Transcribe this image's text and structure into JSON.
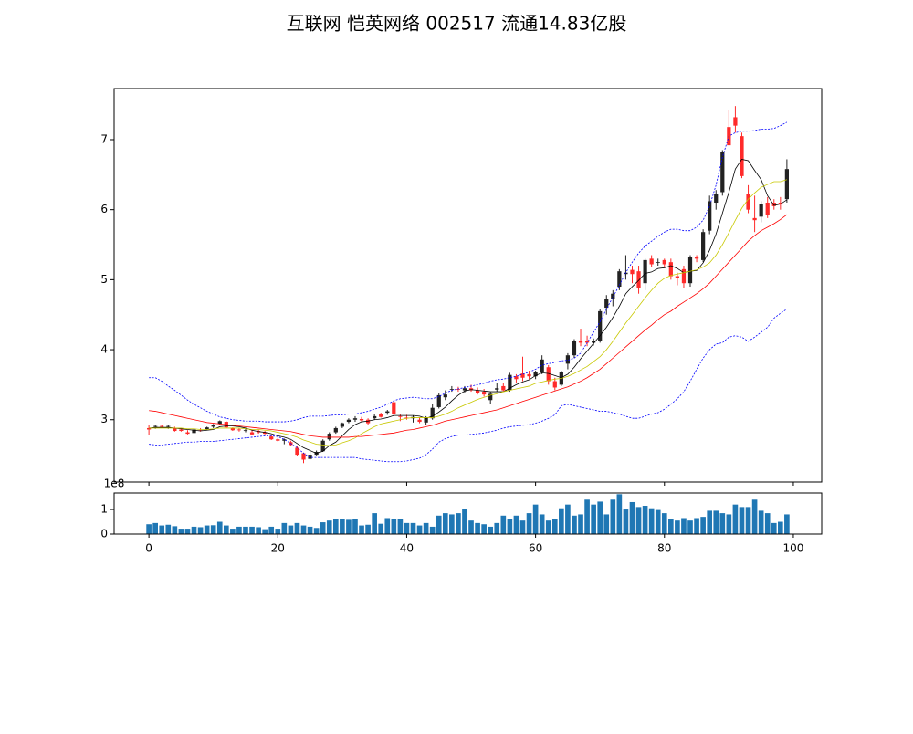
{
  "chart_data": [
    {
      "type": "candlestick",
      "title": "互联网 恺英网络 002517 流通14.83亿股",
      "x": [
        0,
        1,
        2,
        3,
        4,
        5,
        6,
        7,
        8,
        9,
        10,
        11,
        12,
        13,
        14,
        15,
        16,
        17,
        18,
        19,
        20,
        21,
        22,
        23,
        24,
        25,
        26,
        27,
        28,
        29,
        30,
        31,
        32,
        33,
        34,
        35,
        36,
        37,
        38,
        39,
        40,
        41,
        42,
        43,
        44,
        45,
        46,
        47,
        48,
        49,
        50,
        51,
        52,
        53,
        54,
        55,
        56,
        57,
        58,
        59,
        60,
        61,
        62,
        63,
        64,
        65,
        66,
        67,
        68,
        69,
        70,
        71,
        72,
        73,
        74,
        75,
        76,
        77,
        78,
        79,
        80,
        81,
        82,
        83,
        84,
        85,
        86,
        87,
        88,
        89,
        90,
        91,
        92,
        93,
        94,
        95,
        96,
        97,
        98,
        99
      ],
      "open": [
        2.88,
        2.9,
        2.91,
        2.9,
        2.88,
        2.86,
        2.82,
        2.81,
        2.85,
        2.86,
        2.9,
        2.94,
        2.97,
        2.88,
        2.86,
        2.84,
        2.82,
        2.84,
        2.82,
        2.76,
        2.72,
        2.7,
        2.68,
        2.6,
        2.52,
        2.44,
        2.5,
        2.55,
        2.72,
        2.82,
        2.9,
        2.97,
        3.0,
        3.01,
        3.0,
        3.02,
        3.08,
        3.1,
        3.25,
        3.05,
        3.03,
        3.02,
        3.0,
        2.96,
        3.02,
        3.18,
        3.32,
        3.43,
        3.44,
        3.42,
        3.45,
        3.42,
        3.4,
        3.28,
        3.43,
        3.48,
        3.42,
        3.62,
        3.66,
        3.65,
        3.62,
        3.68,
        3.75,
        3.55,
        3.5,
        3.8,
        3.92,
        4.12,
        4.12,
        4.1,
        4.13,
        4.6,
        4.72,
        4.9,
        5.08,
        5.14,
        5.12,
        4.95,
        5.3,
        5.25,
        5.28,
        5.25,
        5.05,
        5.15,
        4.95,
        5.32,
        5.28,
        5.7,
        6.1,
        6.25,
        7.18,
        7.32,
        7.05,
        6.22,
        5.88,
        5.9,
        6.1,
        6.1,
        6.1,
        6.15
      ],
      "high": [
        2.92,
        2.93,
        2.93,
        2.92,
        2.9,
        2.88,
        2.85,
        2.88,
        2.88,
        2.9,
        2.94,
        2.99,
        2.98,
        2.89,
        2.88,
        2.87,
        2.86,
        2.86,
        2.84,
        2.78,
        2.74,
        2.73,
        2.7,
        2.62,
        2.53,
        2.54,
        2.56,
        2.72,
        2.82,
        2.9,
        2.96,
        3.02,
        3.05,
        3.04,
        3.02,
        3.08,
        3.1,
        3.14,
        3.27,
        3.08,
        3.07,
        3.06,
        3.03,
        3.05,
        3.22,
        3.38,
        3.42,
        3.48,
        3.47,
        3.48,
        3.5,
        3.46,
        3.44,
        3.4,
        3.52,
        3.53,
        3.67,
        3.65,
        3.9,
        3.7,
        3.7,
        3.92,
        3.78,
        3.6,
        3.7,
        3.95,
        4.15,
        4.3,
        4.2,
        4.16,
        4.58,
        4.78,
        4.85,
        5.15,
        5.35,
        5.2,
        5.2,
        5.3,
        5.35,
        5.3,
        5.3,
        5.3,
        5.1,
        5.2,
        5.35,
        5.35,
        5.72,
        6.2,
        6.28,
        6.85,
        7.42,
        7.48,
        7.1,
        6.35,
        6.2,
        6.12,
        6.18,
        6.15,
        6.18,
        6.72
      ],
      "low": [
        2.78,
        2.87,
        2.88,
        2.87,
        2.83,
        2.83,
        2.79,
        2.8,
        2.83,
        2.85,
        2.88,
        2.92,
        2.88,
        2.84,
        2.83,
        2.82,
        2.78,
        2.8,
        2.79,
        2.71,
        2.69,
        2.65,
        2.63,
        2.48,
        2.38,
        2.43,
        2.49,
        2.54,
        2.7,
        2.8,
        2.88,
        2.95,
        2.97,
        2.97,
        2.93,
        3.0,
        3.03,
        3.07,
        3.05,
        2.98,
        3.0,
        2.96,
        2.95,
        2.93,
        3.0,
        3.16,
        3.28,
        3.4,
        3.4,
        3.39,
        3.4,
        3.36,
        3.33,
        3.22,
        3.4,
        3.4,
        3.4,
        3.52,
        3.55,
        3.58,
        3.58,
        3.65,
        3.5,
        3.42,
        3.48,
        3.72,
        3.88,
        4.05,
        4.05,
        4.06,
        4.1,
        4.5,
        4.62,
        4.85,
        5.0,
        4.95,
        4.8,
        4.85,
        5.18,
        5.2,
        5.18,
        5.0,
        4.92,
        4.88,
        4.9,
        5.25,
        5.25,
        5.65,
        6.0,
        6.2,
        6.95,
        7.1,
        6.45,
        5.95,
        5.68,
        5.82,
        5.88,
        6.0,
        6.0,
        6.1
      ],
      "close": [
        2.86,
        2.91,
        2.9,
        2.91,
        2.84,
        2.84,
        2.8,
        2.86,
        2.84,
        2.89,
        2.93,
        2.98,
        2.89,
        2.85,
        2.85,
        2.85,
        2.79,
        2.82,
        2.8,
        2.72,
        2.7,
        2.72,
        2.64,
        2.5,
        2.43,
        2.5,
        2.54,
        2.7,
        2.8,
        2.88,
        2.95,
        3.0,
        3.02,
        2.99,
        2.95,
        3.05,
        3.04,
        3.12,
        3.08,
        3.04,
        3.02,
        3.04,
        2.97,
        3.03,
        3.17,
        3.35,
        3.36,
        3.44,
        3.43,
        3.45,
        3.42,
        3.38,
        3.36,
        3.37,
        3.45,
        3.42,
        3.64,
        3.58,
        3.6,
        3.62,
        3.68,
        3.86,
        3.55,
        3.46,
        3.68,
        3.92,
        4.12,
        4.1,
        4.1,
        4.13,
        4.55,
        4.72,
        4.8,
        5.12,
        5.1,
        5.08,
        4.88,
        5.28,
        5.22,
        5.25,
        5.22,
        5.05,
        5.02,
        4.95,
        5.33,
        5.3,
        5.68,
        6.12,
        6.22,
        6.82,
        6.92,
        7.2,
        6.48,
        6.0,
        5.85,
        6.08,
        5.92,
        6.05,
        6.08,
        6.58
      ],
      "up_color": "#222222",
      "down_color": "#ff2a2a",
      "series": [
        {
          "color": "#000000",
          "values": [
            2.88,
            2.89,
            2.89,
            2.89,
            2.88,
            2.87,
            2.86,
            2.85,
            2.84,
            2.85,
            2.86,
            2.9,
            2.91,
            2.91,
            2.9,
            2.88,
            2.85,
            2.83,
            2.82,
            2.8,
            2.77,
            2.75,
            2.72,
            2.66,
            2.6,
            2.56,
            2.52,
            2.55,
            2.63,
            2.68,
            2.77,
            2.86,
            2.93,
            2.97,
            2.98,
            3.0,
            3.01,
            3.03,
            3.06,
            3.06,
            3.06,
            3.06,
            3.05,
            3.02,
            3.05,
            3.11,
            3.18,
            3.27,
            3.35,
            3.41,
            3.43,
            3.42,
            3.41,
            3.4,
            3.4,
            3.4,
            3.45,
            3.5,
            3.54,
            3.57,
            3.63,
            3.67,
            3.66,
            3.63,
            3.6,
            3.65,
            3.75,
            3.87,
            3.98,
            4.09,
            4.2,
            4.32,
            4.46,
            4.62,
            4.8,
            4.9,
            4.99,
            5.09,
            5.11,
            5.16,
            5.17,
            5.2,
            5.16,
            5.1,
            5.12,
            5.13,
            5.24,
            5.42,
            5.65,
            5.95,
            6.25,
            6.58,
            6.72,
            6.7,
            6.56,
            6.43,
            6.2,
            6.06,
            6.08,
            6.14
          ]
        },
        {
          "color": "#c8c800",
          "values": [
            2.88,
            2.88,
            2.88,
            2.88,
            2.88,
            2.88,
            2.87,
            2.87,
            2.86,
            2.86,
            2.87,
            2.88,
            2.88,
            2.88,
            2.88,
            2.87,
            2.86,
            2.86,
            2.85,
            2.84,
            2.82,
            2.8,
            2.78,
            2.75,
            2.71,
            2.68,
            2.65,
            2.64,
            2.63,
            2.64,
            2.67,
            2.7,
            2.74,
            2.8,
            2.85,
            2.9,
            2.94,
            2.96,
            2.98,
            3.0,
            3.02,
            3.03,
            3.03,
            3.03,
            3.03,
            3.05,
            3.08,
            3.12,
            3.17,
            3.21,
            3.25,
            3.29,
            3.32,
            3.35,
            3.37,
            3.4,
            3.42,
            3.44,
            3.46,
            3.48,
            3.52,
            3.54,
            3.56,
            3.58,
            3.59,
            3.62,
            3.66,
            3.71,
            3.76,
            3.83,
            3.9,
            4.0,
            4.12,
            4.25,
            4.38,
            4.5,
            4.62,
            4.74,
            4.85,
            4.95,
            5.02,
            5.06,
            5.08,
            5.1,
            5.12,
            5.14,
            5.18,
            5.24,
            5.35,
            5.5,
            5.67,
            5.85,
            6.02,
            6.15,
            6.24,
            6.32,
            6.36,
            6.4,
            6.4,
            6.43
          ]
        },
        {
          "color": "#ff0000",
          "values": [
            3.13,
            3.12,
            3.1,
            3.08,
            3.06,
            3.04,
            3.02,
            3.0,
            2.98,
            2.96,
            2.95,
            2.94,
            2.93,
            2.92,
            2.91,
            2.9,
            2.89,
            2.88,
            2.87,
            2.86,
            2.85,
            2.84,
            2.83,
            2.81,
            2.79,
            2.77,
            2.76,
            2.75,
            2.75,
            2.75,
            2.75,
            2.75,
            2.76,
            2.76,
            2.77,
            2.78,
            2.79,
            2.8,
            2.81,
            2.83,
            2.85,
            2.86,
            2.88,
            2.9,
            2.92,
            2.95,
            2.98,
            3.0,
            3.02,
            3.04,
            3.06,
            3.08,
            3.1,
            3.12,
            3.14,
            3.17,
            3.2,
            3.23,
            3.26,
            3.29,
            3.32,
            3.35,
            3.38,
            3.41,
            3.44,
            3.47,
            3.51,
            3.55,
            3.6,
            3.66,
            3.72,
            3.8,
            3.88,
            3.96,
            4.04,
            4.12,
            4.2,
            4.28,
            4.35,
            4.43,
            4.5,
            4.55,
            4.62,
            4.68,
            4.74,
            4.8,
            4.87,
            4.95,
            5.05,
            5.15,
            5.25,
            5.35,
            5.45,
            5.55,
            5.63,
            5.7,
            5.75,
            5.8,
            5.86,
            5.93
          ]
        },
        {
          "color": "#0000ff",
          "dashed": true,
          "values": [
            3.6,
            3.6,
            3.55,
            3.48,
            3.42,
            3.35,
            3.28,
            3.22,
            3.17,
            3.12,
            3.08,
            3.04,
            3.02,
            3.0,
            2.99,
            2.98,
            2.98,
            2.98,
            2.97,
            2.97,
            2.97,
            2.97,
            2.98,
            3.0,
            3.03,
            3.05,
            3.05,
            3.05,
            3.06,
            3.07,
            3.07,
            3.08,
            3.08,
            3.1,
            3.12,
            3.15,
            3.18,
            3.22,
            3.27,
            3.3,
            3.31,
            3.32,
            3.31,
            3.3,
            3.3,
            3.33,
            3.38,
            3.42,
            3.44,
            3.46,
            3.48,
            3.5,
            3.52,
            3.55,
            3.57,
            3.58,
            3.6,
            3.62,
            3.65,
            3.68,
            3.72,
            3.78,
            3.8,
            3.82,
            3.84,
            3.85,
            3.88,
            3.95,
            4.1,
            4.25,
            4.4,
            4.58,
            4.75,
            4.92,
            5.1,
            5.25,
            5.38,
            5.48,
            5.55,
            5.62,
            5.68,
            5.72,
            5.72,
            5.7,
            5.7,
            5.75,
            5.85,
            6.05,
            6.35,
            6.75,
            7.05,
            7.1,
            7.12,
            7.12,
            7.13,
            7.15,
            7.15,
            7.16,
            7.2,
            7.25
          ]
        },
        {
          "color": "#0000ff",
          "dashed": true,
          "values": [
            2.65,
            2.64,
            2.64,
            2.65,
            2.66,
            2.67,
            2.68,
            2.68,
            2.69,
            2.69,
            2.69,
            2.7,
            2.71,
            2.72,
            2.73,
            2.74,
            2.75,
            2.76,
            2.77,
            2.77,
            2.76,
            2.72,
            2.66,
            2.6,
            2.52,
            2.46,
            2.46,
            2.46,
            2.46,
            2.46,
            2.46,
            2.46,
            2.46,
            2.44,
            2.43,
            2.42,
            2.41,
            2.4,
            2.4,
            2.4,
            2.41,
            2.43,
            2.45,
            2.5,
            2.58,
            2.68,
            2.73,
            2.76,
            2.78,
            2.78,
            2.79,
            2.8,
            2.81,
            2.83,
            2.85,
            2.88,
            2.9,
            2.91,
            2.92,
            2.93,
            2.95,
            2.98,
            3.02,
            3.07,
            3.2,
            3.22,
            3.2,
            3.18,
            3.16,
            3.14,
            3.12,
            3.12,
            3.1,
            3.08,
            3.05,
            3.02,
            3.02,
            3.05,
            3.08,
            3.1,
            3.15,
            3.22,
            3.3,
            3.4,
            3.55,
            3.72,
            3.88,
            4.0,
            4.08,
            4.1,
            4.18,
            4.2,
            4.18,
            4.12,
            4.18,
            4.25,
            4.32,
            4.45,
            4.52,
            4.58
          ]
        }
      ],
      "xlim": [
        -5.4,
        104.4
      ],
      "xticks": [
        0,
        20,
        40,
        60,
        80,
        100
      ],
      "ylim": [
        2.11,
        7.73
      ],
      "yticks": [
        3,
        4,
        5,
        6,
        7
      ]
    },
    {
      "type": "bar",
      "color": "#1f77b4",
      "offset_text": "1e8",
      "values": [
        40000000.0,
        45000000.0,
        35000000.0,
        38000000.0,
        32000000.0,
        22000000.0,
        22000000.0,
        30000000.0,
        28000000.0,
        35000000.0,
        36000000.0,
        50000000.0,
        35000000.0,
        22000000.0,
        30000000.0,
        30000000.0,
        30000000.0,
        28000000.0,
        20000000.0,
        30000000.0,
        22000000.0,
        45000000.0,
        35000000.0,
        45000000.0,
        35000000.0,
        30000000.0,
        25000000.0,
        48000000.0,
        55000000.0,
        62000000.0,
        60000000.0,
        58000000.0,
        62000000.0,
        35000000.0,
        38000000.0,
        85000000.0,
        42000000.0,
        65000000.0,
        60000000.0,
        60000000.0,
        45000000.0,
        45000000.0,
        35000000.0,
        45000000.0,
        30000000.0,
        75000000.0,
        85000000.0,
        80000000.0,
        85000000.0,
        102000000.0,
        55000000.0,
        45000000.0,
        40000000.0,
        30000000.0,
        45000000.0,
        75000000.0,
        60000000.0,
        75000000.0,
        55000000.0,
        85000000.0,
        120000000.0,
        80000000.0,
        55000000.0,
        60000000.0,
        105000000.0,
        120000000.0,
        75000000.0,
        80000000.0,
        140000000.0,
        120000000.0,
        132000000.0,
        80000000.0,
        140000000.0,
        162000000.0,
        100000000.0,
        130000000.0,
        110000000.0,
        115000000.0,
        105000000.0,
        98000000.0,
        85000000.0,
        60000000.0,
        55000000.0,
        65000000.0,
        55000000.0,
        65000000.0,
        70000000.0,
        95000000.0,
        95000000.0,
        85000000.0,
        80000000.0,
        120000000.0,
        110000000.0,
        110000000.0,
        140000000.0,
        95000000.0,
        85000000.0,
        45000000.0,
        50000000.0,
        80000000.0
      ],
      "xlim": [
        -5.4,
        104.4
      ],
      "xticks": [
        0,
        20,
        40,
        60,
        80,
        100
      ],
      "ylim": [
        0,
        167000000
      ],
      "yticks": [
        0,
        {
          "value": 100000000,
          "label": "1"
        }
      ]
    }
  ]
}
